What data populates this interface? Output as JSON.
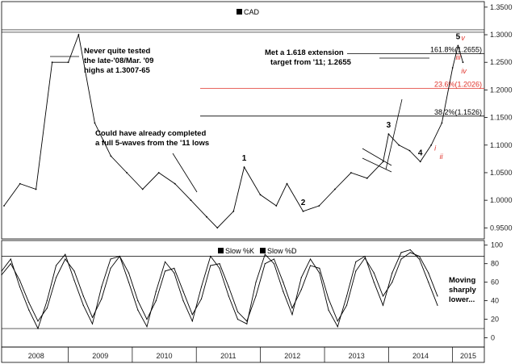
{
  "chart_data": [
    {
      "type": "line",
      "panel": "price",
      "series": [
        {
          "name": "CAD",
          "x": [
            "2008-01",
            "2008-04",
            "2008-07",
            "2008-10",
            "2009-01",
            "2009-03",
            "2009-06",
            "2009-09",
            "2009-12",
            "2010-03",
            "2010-06",
            "2010-09",
            "2010-12",
            "2011-03",
            "2011-05",
            "2011-08",
            "2011-10",
            "2012-01",
            "2012-04",
            "2012-06",
            "2012-09",
            "2012-12",
            "2013-03",
            "2013-06",
            "2013-09",
            "2013-12",
            "2014-01",
            "2014-03",
            "2014-05",
            "2014-07",
            "2014-09",
            "2014-11",
            "2015-01",
            "2015-02",
            "2015-03"
          ],
          "values": [
            0.99,
            1.03,
            1.02,
            1.25,
            1.25,
            1.3,
            1.14,
            1.08,
            1.05,
            1.02,
            1.05,
            1.03,
            1.0,
            0.97,
            0.95,
            0.98,
            1.06,
            1.01,
            0.99,
            1.03,
            0.98,
            0.99,
            1.02,
            1.05,
            1.04,
            1.07,
            1.12,
            1.1,
            1.09,
            1.07,
            1.1,
            1.14,
            1.24,
            1.28,
            1.25
          ]
        }
      ],
      "ylim": [
        0.93,
        1.36
      ],
      "yticks": [
        "1.3500",
        "1.3000",
        "1.2500",
        "1.2000",
        "1.1500",
        "1.1000",
        "1.0500",
        "1.0000",
        "0.9500"
      ],
      "hlines": [
        {
          "label": "161.8%(1.2655)",
          "value": 1.2655
        },
        {
          "label": "23.6%(1.2026)",
          "value": 1.2026,
          "color": "#e0332b"
        },
        {
          "label": "38.2%(1.1526)",
          "value": 1.1526
        }
      ],
      "resistance_value": 1.3045,
      "waves": [
        {
          "label": "1",
          "x": "2011-10",
          "y": 1.06
        },
        {
          "label": "2",
          "x": "2012-09",
          "y": 0.98
        },
        {
          "label": "3",
          "x": "2014-01",
          "y": 1.12
        },
        {
          "label": "4",
          "x": "2014-07",
          "y": 1.07
        },
        {
          "label": "5",
          "x": "2015-02",
          "y": 1.28
        }
      ],
      "subwaves": [
        {
          "label": "i",
          "x": "2014-09",
          "y": 1.09
        },
        {
          "label": "ii",
          "x": "2014-10",
          "y": 1.075
        },
        {
          "label": "iii",
          "x": "2015-01",
          "y": 1.255
        },
        {
          "label": "iv",
          "x": "2015-02",
          "y": 1.23
        },
        {
          "label": "v",
          "x": "2015-02",
          "y": 1.29
        }
      ],
      "annotations": [
        {
          "lines": [
            "Never quite tested",
            "the late-'08/Mar. '09",
            "highs at 1.3007-65"
          ]
        },
        {
          "lines": [
            "Met a 1.618 extension",
            "target from '11; 1.2655"
          ]
        },
        {
          "lines": [
            "Could have already completed",
            "a full 5-waves from the '11 lows"
          ]
        }
      ],
      "grid": false,
      "legend": "top-left"
    },
    {
      "type": "line",
      "panel": "oscillator",
      "series": [
        {
          "name": "Slow %K",
          "values": [
            72,
            85,
            55,
            30,
            10,
            40,
            78,
            90,
            62,
            35,
            15,
            55,
            85,
            88,
            60,
            30,
            12,
            50,
            82,
            70,
            40,
            18,
            55,
            88,
            75,
            45,
            20,
            15,
            60,
            90,
            80,
            50,
            25,
            65,
            85,
            70,
            30,
            12,
            45,
            82,
            88,
            60,
            35,
            70,
            92,
            95,
            85,
            60,
            35
          ]
        },
        {
          "name": "Slow %D",
          "values": [
            68,
            80,
            62,
            38,
            18,
            32,
            65,
            85,
            72,
            45,
            22,
            42,
            75,
            88,
            70,
            40,
            20,
            40,
            72,
            75,
            50,
            25,
            42,
            78,
            80,
            55,
            28,
            18,
            45,
            80,
            85,
            60,
            32,
            52,
            78,
            75,
            42,
            18,
            35,
            72,
            86,
            70,
            45,
            60,
            85,
            92,
            88,
            70,
            45
          ]
        }
      ],
      "ylim": [
        -10,
        105
      ],
      "yticks": [
        "100",
        "80",
        "60",
        "40",
        "20",
        "0"
      ],
      "hlines": [
        {
          "value": 88
        },
        {
          "value": 10
        }
      ],
      "annotations": [
        {
          "lines": [
            "Moving",
            "sharply",
            "lower..."
          ]
        }
      ],
      "legend": "top-center"
    }
  ],
  "x_axis": {
    "labels": [
      "2008",
      "2009",
      "2010",
      "2011",
      "2012",
      "2013",
      "2014",
      "2015"
    ]
  },
  "colors": {
    "line": "#000000",
    "fib_red": "#e0332b",
    "wave_red": "#e0332b",
    "axis": "#000000"
  }
}
